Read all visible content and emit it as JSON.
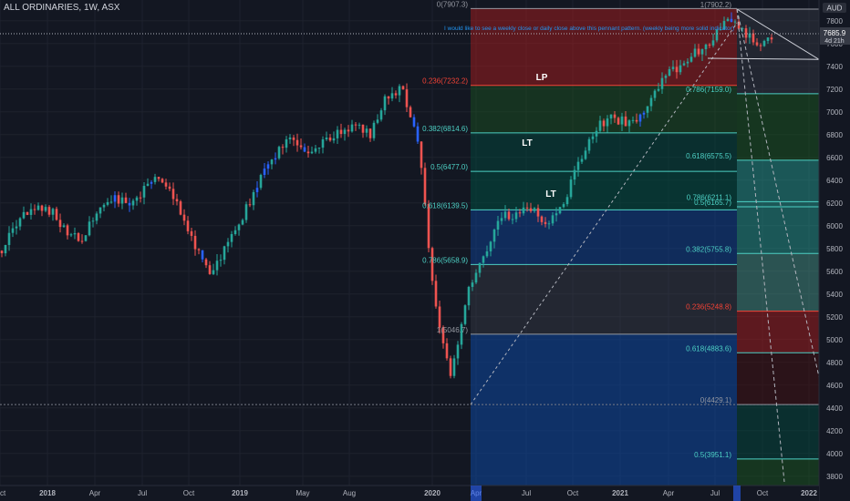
{
  "header": {
    "title": "ALL ORDINARIES, 1W, ASX"
  },
  "price_scale": {
    "currency_badge": "AUD",
    "current_price": "7685.9",
    "countdown": "4d 21h"
  },
  "annotation_note": "I would like to see a weekly close or daily close above this pennant pattern. (weekly being more solid indicator)",
  "chart_data": {
    "type": "candlestick",
    "title": "ALL ORDINARIES, 1W, ASX",
    "ylim": [
      3750,
      8000
    ],
    "y_ticks": [
      3800,
      4000,
      4200,
      4400,
      4600,
      4800,
      5000,
      5200,
      5400,
      5600,
      5800,
      6000,
      6200,
      6400,
      6600,
      6800,
      7000,
      7200,
      7400,
      7600,
      7800
    ],
    "x_ticks": [
      "Oct",
      "2018",
      "Apr",
      "Jul",
      "Oct",
      "2019",
      "May",
      "Aug",
      "2020",
      "Apr",
      "Jul",
      "Oct",
      "2021",
      "Apr",
      "Jul",
      "Oct",
      "2022"
    ],
    "last_price": 7685.9,
    "candle_path": [
      [
        "2017-10",
        5780
      ],
      [
        "2017-11",
        6050
      ],
      [
        "2017-12",
        6130
      ],
      [
        "2018-02",
        6140
      ],
      [
        "2018-03",
        5960
      ],
      [
        "2018-04",
        5850
      ],
      [
        "2018-05",
        6160
      ],
      [
        "2018-06",
        6230
      ],
      [
        "2018-07",
        6180
      ],
      [
        "2018-08",
        6350
      ],
      [
        "2018-09",
        6420
      ],
      [
        "2018-10",
        6180
      ],
      [
        "2018-11",
        5830
      ],
      [
        "2018-12",
        5550
      ],
      [
        "2019-01",
        5820
      ],
      [
        "2019-02",
        6070
      ],
      [
        "2019-04",
        6380
      ],
      [
        "2019-06",
        6600
      ],
      [
        "2019-07",
        6820
      ],
      [
        "2019-08",
        6600
      ],
      [
        "2019-09",
        6760
      ],
      [
        "2019-10",
        6800
      ],
      [
        "2019-11",
        6900
      ],
      [
        "2019-12",
        6800
      ],
      [
        "2020-01",
        7150
      ],
      [
        "2020-02",
        7200
      ],
      [
        "2020-02b",
        6700
      ],
      [
        "2020-03",
        5300
      ],
      [
        "2020-03b",
        4650
      ],
      [
        "2020-04",
        5380
      ],
      [
        "2020-05",
        5700
      ],
      [
        "2020-06",
        6080
      ],
      [
        "2020-07",
        6100
      ],
      [
        "2020-08",
        6140
      ],
      [
        "2020-09",
        6000
      ],
      [
        "2020-10",
        6200
      ],
      [
        "2020-11",
        6550
      ],
      [
        "2020-12",
        6850
      ],
      [
        "2021-01",
        6950
      ],
      [
        "2021-02",
        6900
      ],
      [
        "2021-03",
        6950
      ],
      [
        "2021-04",
        7250
      ],
      [
        "2021-05",
        7380
      ],
      [
        "2021-06",
        7500
      ],
      [
        "2021-07",
        7600
      ],
      [
        "2021-08",
        7800
      ],
      [
        "2021-08b",
        7760
      ],
      [
        "2021-09",
        7580
      ],
      [
        "2021-10",
        7650
      ]
    ],
    "fib_levels_retracement": [
      {
        "label": "0(7907.3)",
        "value": 7907.3
      },
      {
        "label": "0.236(7232.2)",
        "value": 7232.2
      },
      {
        "label": "0.382(6814.6)",
        "value": 6814.6
      },
      {
        "label": "0.5(6477.0)",
        "value": 6477.0
      },
      {
        "label": "0.618(6139.5)",
        "value": 6139.5
      },
      {
        "label": "0.786(5658.9)",
        "value": 5658.9
      },
      {
        "label": "1(5046.7)",
        "value": 5046.7
      }
    ],
    "fib_levels_extension": [
      {
        "label": "1(7902.2)",
        "value": 7902.2
      },
      {
        "label": "0.786(7159.0)",
        "value": 7159.0
      },
      {
        "label": "0.618(6575.5)",
        "value": 6575.5
      },
      {
        "label": "0.786(6211.1)",
        "value": 6211.1
      },
      {
        "label": "0.5(6165.7)",
        "value": 6165.7
      },
      {
        "label": "0.382(5755.8)",
        "value": 5755.8
      },
      {
        "label": "0.236(5248.8)",
        "value": 5248.8
      },
      {
        "label": "0.618(4883.6)",
        "value": 4883.6
      },
      {
        "label": "0(4429.1)",
        "value": 4429.1
      },
      {
        "label": "0.5(3951.1)",
        "value": 3951.1
      }
    ],
    "wave_labels": [
      "LP",
      "LT",
      "LT"
    ],
    "colors": {
      "background": "#131722",
      "up_candle": "#26a69a",
      "down_candle": "#ef5350",
      "blue_candle": "#2962ff",
      "zone_red": "#b71c1c",
      "zone_green": "#1b5e20",
      "zone_teal": "#004d40",
      "zone_blue": "#0d47a1",
      "zone_gray": "#434651",
      "label_red": "#f44336",
      "label_teal": "#4dd0c4",
      "label_gray": "#9598a1",
      "text": "#d1d4dc"
    }
  }
}
